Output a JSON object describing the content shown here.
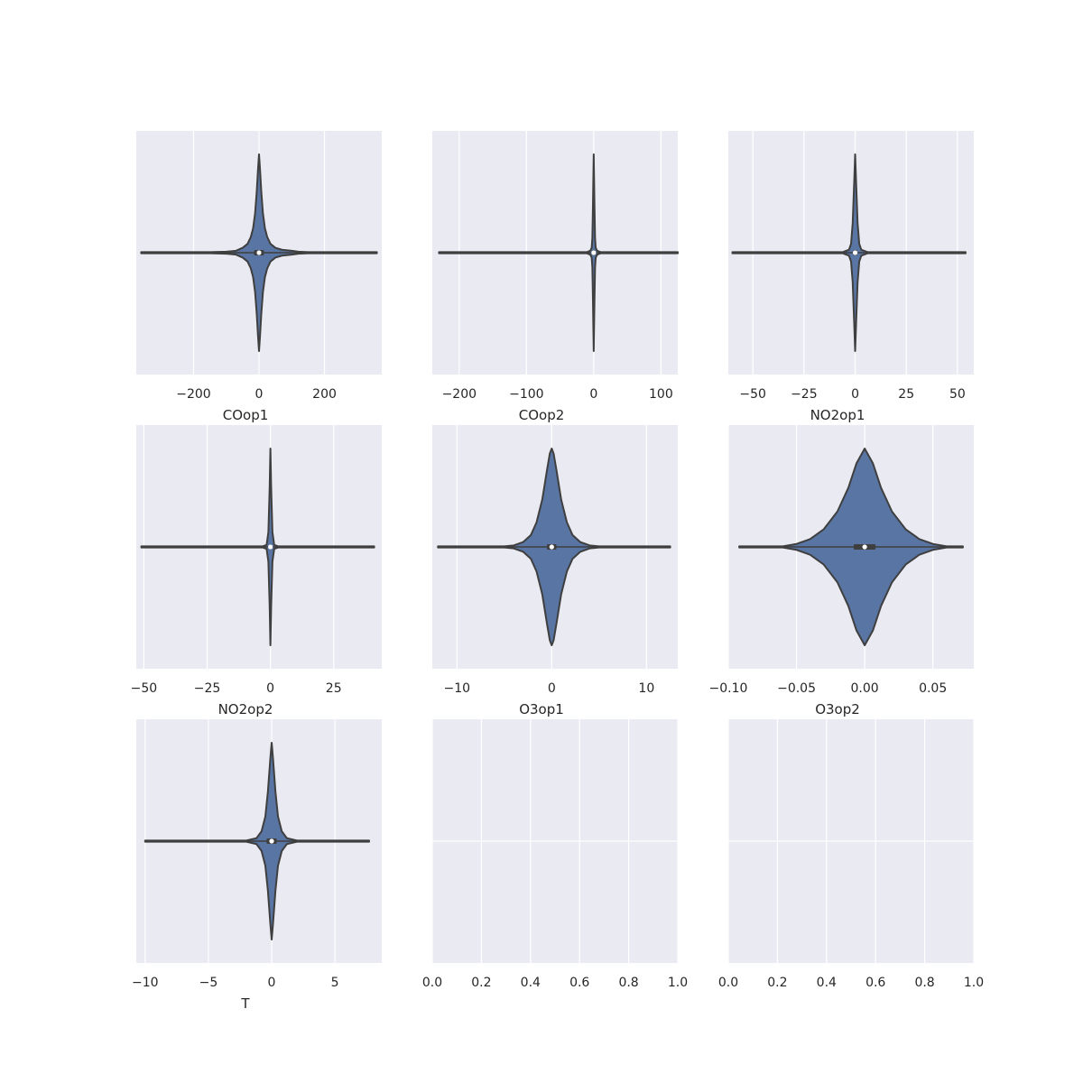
{
  "chart_data": [
    {
      "type": "violin",
      "xlabel": "COop1",
      "xlim": [
        -375,
        375
      ],
      "xticks": [
        -200,
        0,
        200
      ],
      "tick_labels": [
        "−200",
        "0",
        "200"
      ],
      "range": [
        -360,
        360
      ],
      "peak": 0,
      "median": 0,
      "iqr": [
        -15,
        15
      ],
      "density": [
        [
          -360,
          0.006
        ],
        [
          -150,
          0.006
        ],
        [
          -100,
          0.01
        ],
        [
          -70,
          0.02
        ],
        [
          -50,
          0.05
        ],
        [
          -35,
          0.09
        ],
        [
          -25,
          0.16
        ],
        [
          -18,
          0.25
        ],
        [
          -12,
          0.4
        ],
        [
          -7,
          0.62
        ],
        [
          -3,
          0.85
        ],
        [
          0,
          1.0
        ],
        [
          3,
          0.85
        ],
        [
          7,
          0.62
        ],
        [
          12,
          0.4
        ],
        [
          18,
          0.25
        ],
        [
          25,
          0.16
        ],
        [
          35,
          0.09
        ],
        [
          50,
          0.05
        ],
        [
          70,
          0.03
        ],
        [
          100,
          0.02
        ],
        [
          120,
          0.01
        ],
        [
          150,
          0.006
        ],
        [
          360,
          0.006
        ]
      ]
    },
    {
      "type": "violin",
      "xlabel": "COop2",
      "xlim": [
        -240,
        125
      ],
      "xticks": [
        -200,
        -100,
        0,
        100
      ],
      "tick_labels": [
        "−200",
        "−100",
        "0",
        "100"
      ],
      "range": [
        -230,
        125
      ],
      "peak": 0,
      "median": 0,
      "iqr": [
        -2,
        2
      ],
      "density": [
        [
          -230,
          0.006
        ],
        [
          -10,
          0.006
        ],
        [
          -5,
          0.02
        ],
        [
          -3,
          0.05
        ],
        [
          -2,
          0.15
        ],
        [
          -1.2,
          0.45
        ],
        [
          0,
          1.0
        ],
        [
          1.2,
          0.45
        ],
        [
          2,
          0.15
        ],
        [
          3,
          0.05
        ],
        [
          5,
          0.02
        ],
        [
          10,
          0.006
        ],
        [
          125,
          0.006
        ]
      ]
    },
    {
      "type": "violin",
      "xlabel": "NO2op1",
      "xlim": [
        -62,
        58
      ],
      "xticks": [
        -50,
        -25,
        0,
        25,
        50
      ],
      "tick_labels": [
        "−50",
        "−25",
        "0",
        "25",
        "50"
      ],
      "range": [
        -60,
        54
      ],
      "peak": 0,
      "median": 0,
      "iqr": [
        -1,
        1
      ],
      "density": [
        [
          -60,
          0.006
        ],
        [
          -6,
          0.006
        ],
        [
          -3,
          0.03
        ],
        [
          -2,
          0.09
        ],
        [
          -1.2,
          0.3
        ],
        [
          -0.5,
          0.7
        ],
        [
          0,
          1.0
        ],
        [
          0.5,
          0.7
        ],
        [
          1.2,
          0.3
        ],
        [
          2,
          0.09
        ],
        [
          3,
          0.03
        ],
        [
          6,
          0.006
        ],
        [
          54,
          0.006
        ]
      ]
    },
    {
      "type": "violin",
      "xlabel": "NO2op2",
      "xlim": [
        -53,
        44
      ],
      "xticks": [
        -50,
        -25,
        0,
        25
      ],
      "tick_labels": [
        "−50",
        "−25",
        "0",
        "25"
      ],
      "range": [
        -51,
        41
      ],
      "peak": 0,
      "median": 0,
      "iqr": [
        -0.3,
        0.3
      ],
      "density": [
        [
          -51,
          0.006
        ],
        [
          -3,
          0.006
        ],
        [
          -1.5,
          0.02
        ],
        [
          -0.8,
          0.15
        ],
        [
          -0.3,
          0.6
        ],
        [
          0,
          1.0
        ],
        [
          0.3,
          0.6
        ],
        [
          0.8,
          0.15
        ],
        [
          1.5,
          0.02
        ],
        [
          3,
          0.006
        ],
        [
          41,
          0.006
        ]
      ]
    },
    {
      "type": "violin",
      "xlabel": "O3op1",
      "xlim": [
        -12.6,
        13.3
      ],
      "xticks": [
        -10,
        0,
        10
      ],
      "tick_labels": [
        "−10",
        "0",
        "10"
      ],
      "range": [
        -12,
        12.5
      ],
      "peak": 0,
      "median": 0,
      "iqr": [
        -0.5,
        0.5
      ],
      "density": [
        [
          -12,
          0.006
        ],
        [
          -5,
          0.006
        ],
        [
          -4,
          0.015
        ],
        [
          -3,
          0.05
        ],
        [
          -2.2,
          0.12
        ],
        [
          -1.6,
          0.25
        ],
        [
          -1.0,
          0.48
        ],
        [
          -0.5,
          0.78
        ],
        [
          -0.2,
          0.95
        ],
        [
          0,
          1.0
        ],
        [
          0.2,
          0.95
        ],
        [
          0.5,
          0.78
        ],
        [
          1.0,
          0.48
        ],
        [
          1.6,
          0.25
        ],
        [
          2.2,
          0.12
        ],
        [
          3,
          0.05
        ],
        [
          4,
          0.015
        ],
        [
          5,
          0.006
        ],
        [
          12.5,
          0.006
        ]
      ]
    },
    {
      "type": "violin",
      "xlabel": "O3op2",
      "xlim": [
        -0.1,
        0.08
      ],
      "xticks": [
        -0.1,
        -0.05,
        0.0,
        0.05
      ],
      "tick_labels": [
        "−0.10",
        "−0.05",
        "0.00",
        "0.05"
      ],
      "range": [
        -0.092,
        0.072
      ],
      "peak": 0.0,
      "median": 0.0,
      "iqr": [
        -0.008,
        0.008
      ],
      "density": [
        [
          -0.092,
          0.006
        ],
        [
          -0.06,
          0.006
        ],
        [
          -0.05,
          0.03
        ],
        [
          -0.04,
          0.08
        ],
        [
          -0.03,
          0.18
        ],
        [
          -0.02,
          0.36
        ],
        [
          -0.012,
          0.6
        ],
        [
          -0.006,
          0.85
        ],
        [
          0,
          1.0
        ],
        [
          0.006,
          0.85
        ],
        [
          0.012,
          0.6
        ],
        [
          0.02,
          0.36
        ],
        [
          0.03,
          0.18
        ],
        [
          0.04,
          0.08
        ],
        [
          0.05,
          0.03
        ],
        [
          0.06,
          0.006
        ],
        [
          0.072,
          0.006
        ]
      ]
    },
    {
      "type": "violin",
      "xlabel": "T",
      "xlim": [
        -10.7,
        8.7
      ],
      "xticks": [
        -10,
        -5,
        0,
        5
      ],
      "tick_labels": [
        "−10",
        "−5",
        "0",
        "5"
      ],
      "range": [
        -10,
        7.7
      ],
      "peak": 0,
      "median": 0,
      "iqr": [
        -0.4,
        0.4
      ],
      "density": [
        [
          -10,
          0.006
        ],
        [
          -2,
          0.006
        ],
        [
          -1.2,
          0.03
        ],
        [
          -0.8,
          0.1
        ],
        [
          -0.5,
          0.25
        ],
        [
          -0.3,
          0.5
        ],
        [
          -0.1,
          0.85
        ],
        [
          0,
          1.0
        ],
        [
          0.1,
          0.85
        ],
        [
          0.3,
          0.5
        ],
        [
          0.5,
          0.25
        ],
        [
          0.8,
          0.1
        ],
        [
          1.2,
          0.03
        ],
        [
          2,
          0.006
        ],
        [
          7.7,
          0.006
        ]
      ]
    },
    {
      "type": "empty",
      "xlabel": "",
      "xlim": [
        0,
        1
      ],
      "xticks": [
        0.0,
        0.2,
        0.4,
        0.6,
        0.8,
        1.0
      ],
      "tick_labels": [
        "0.0",
        "0.2",
        "0.4",
        "0.6",
        "0.8",
        "1.0"
      ]
    },
    {
      "type": "empty",
      "xlabel": "",
      "xlim": [
        0,
        1
      ],
      "xticks": [
        0.0,
        0.2,
        0.4,
        0.6,
        0.8,
        1.0
      ],
      "tick_labels": [
        "0.0",
        "0.2",
        "0.4",
        "0.6",
        "0.8",
        "1.0"
      ]
    }
  ],
  "colors": {
    "panel_bg": "#eaeaf2",
    "grid": "#ffffff",
    "violin_fill": "#5975a4",
    "violin_edge": "#3f3f3f",
    "whisker": "#3f3f3f",
    "median_dot": "#ffffff",
    "text": "#262626"
  }
}
